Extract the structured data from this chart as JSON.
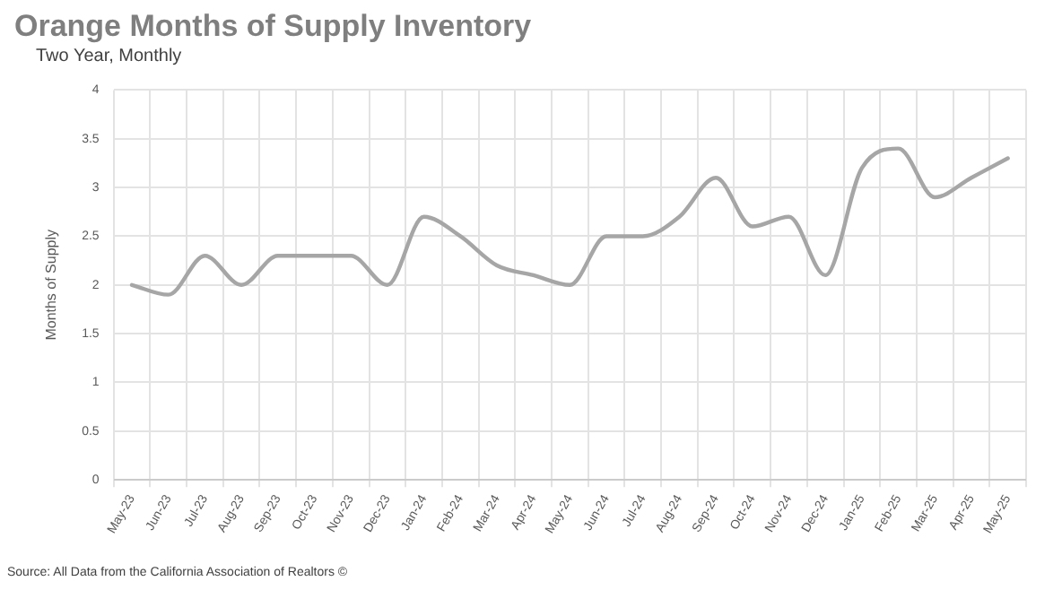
{
  "chart_data": {
    "type": "line",
    "title": "Orange Months of Supply Inventory",
    "subtitle": "Two Year, Monthly",
    "ylabel": "Months of Supply",
    "categories": [
      "May-23",
      "Jun-23",
      "Jul-23",
      "Aug-23",
      "Sep-23",
      "Oct-23",
      "Nov-23",
      "Dec-23",
      "Jan-24",
      "Feb-24",
      "Mar-24",
      "Apr-24",
      "May-24",
      "Jun-24",
      "Jul-24",
      "Aug-24",
      "Sep-24",
      "Oct-24",
      "Nov-24",
      "Dec-24",
      "Jan-25",
      "Feb-25",
      "Mar-25",
      "Apr-25",
      "May-25"
    ],
    "series": [
      {
        "color": "#a6a6a6",
        "values": [
          2.0,
          1.9,
          2.3,
          2.0,
          2.3,
          2.3,
          2.3,
          2.0,
          2.7,
          2.5,
          2.2,
          2.1,
          2.0,
          2.5,
          2.5,
          2.7,
          3.1,
          2.6,
          2.7,
          2.1,
          3.2,
          3.4,
          2.9,
          3.1,
          3.3
        ]
      }
    ],
    "ylim": [
      0,
      4
    ],
    "yticks": [
      0,
      0.5,
      1,
      1.5,
      2,
      2.5,
      3,
      3.5,
      4
    ],
    "grid": true,
    "legend": false,
    "marker": "none",
    "line_style": "solid",
    "annotations": [
      "Source: All Data from the California Association of Realtors ©"
    ]
  }
}
